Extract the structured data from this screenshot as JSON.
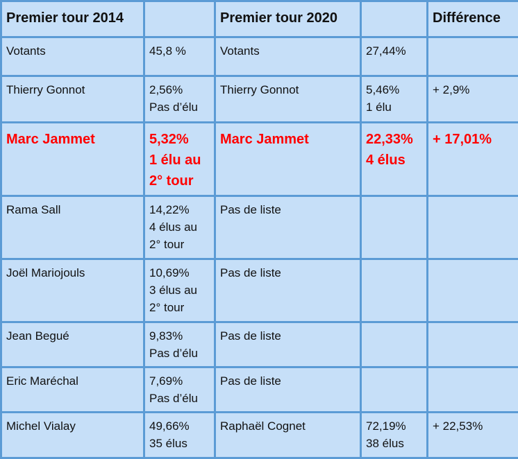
{
  "table": {
    "headers": [
      "Premier tour 2014",
      "",
      "Premier tour 2020",
      "",
      "Différence"
    ],
    "rows": [
      {
        "c2014_name": "Votants",
        "c2014_value": [
          "45,8 %"
        ],
        "c2020_name": "Votants",
        "c2020_value": [
          "27,44%"
        ],
        "difference": ""
      },
      {
        "c2014_name": "Thierry Gonnot",
        "c2014_value": [
          "2,56%",
          "Pas d’élu"
        ],
        "c2020_name": "Thierry Gonnot",
        "c2020_value": [
          "5,46%",
          "1 élu"
        ],
        "difference": "+ 2,9%"
      },
      {
        "c2014_name": "Marc Jammet",
        "c2014_value": [
          "5,32%",
          "1 élu au",
          "2° tour"
        ],
        "c2020_name": "Marc Jammet",
        "c2020_value": [
          "22,33%",
          "4 élus"
        ],
        "difference": "+ 17,01%",
        "highlight": true
      },
      {
        "c2014_name": "Rama Sall",
        "c2014_value": [
          "14,22%",
          "4 élus au",
          "2° tour"
        ],
        "c2020_name": "Pas de liste",
        "c2020_value": [],
        "difference": ""
      },
      {
        "c2014_name": "Joël Mariojouls",
        "c2014_value": [
          "10,69%",
          "3 élus au",
          "2° tour"
        ],
        "c2020_name": "Pas de liste",
        "c2020_value": [],
        "difference": ""
      },
      {
        "c2014_name": "Jean Begué",
        "c2014_value": [
          "9,83%",
          "Pas d’élu"
        ],
        "c2020_name": "Pas de liste",
        "c2020_value": [],
        "difference": ""
      },
      {
        "c2014_name": "Eric Maréchal",
        "c2014_value": [
          "7,69%",
          "Pas d’élu"
        ],
        "c2020_name": "Pas de liste",
        "c2020_value": [],
        "difference": ""
      },
      {
        "c2014_name": "Michel Vialay",
        "c2014_value": [
          "49,66%",
          "35 élus"
        ],
        "c2020_name": "Raphaël Cognet",
        "c2020_value": [
          "72,19%",
          "38 élus"
        ],
        "difference": "+ 22,53%"
      }
    ]
  },
  "colors": {
    "cell_background": "#c6dff8",
    "border": "#5b9bd5",
    "highlight_text": "#ff0000",
    "text": "#111111"
  }
}
